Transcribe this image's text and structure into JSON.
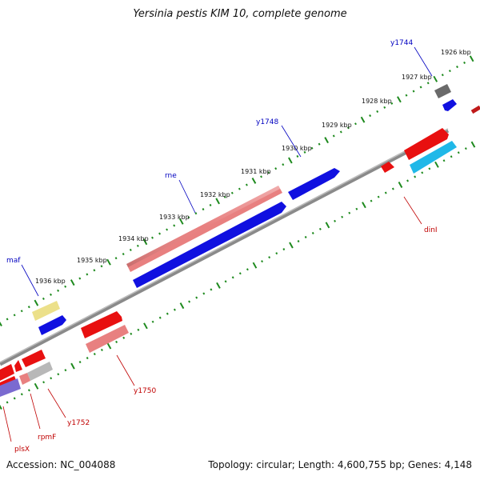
{
  "title": "Yersinia pestis KIM 10, complete genome",
  "footer": {
    "accession": "Accession: NC_004088",
    "summary": "Topology: circular; Length: 4,600,755 bp; Genes: 4,148"
  },
  "colors": {
    "backbone": "#7a7a7a",
    "ticks": "#1e8a1e",
    "label_forward": "#0000c0",
    "label_reverse": "#c00000"
  },
  "scale_labels": [
    "1926 kbp",
    "1927 kbp",
    "1928 kbp",
    "1929 kbp",
    "1930 kbp",
    "1931 kbp",
    "1932 kbp",
    "1933 kbp",
    "1934 kbp",
    "1935 kbp",
    "1936 kbp"
  ],
  "genes": {
    "forward": [
      {
        "label": "y1744",
        "color": "#6a6a6a"
      },
      {
        "label": "",
        "color": "#1010e0"
      },
      {
        "label": "y1748",
        "color": "#1010e0"
      },
      {
        "label": "rne",
        "color": "#e88080"
      },
      {
        "label": "",
        "color": "#1010e0"
      },
      {
        "label": "maf",
        "color": "#ece08a"
      },
      {
        "label": "",
        "color": "#1010e0"
      }
    ],
    "reverse": [
      {
        "label": "dinI",
        "color": "#e81010"
      },
      {
        "label": "",
        "color": "#20b8e8"
      },
      {
        "label": "",
        "color": "#e81010"
      },
      {
        "label": "y1750",
        "color": "#e81010"
      },
      {
        "label": "",
        "color": "#e88080"
      },
      {
        "label": "",
        "color": "#e81010"
      },
      {
        "label": "",
        "color": "#e81010"
      },
      {
        "label": "y1752",
        "color": "#b8b8b8"
      },
      {
        "label": "rpmF",
        "color": "#e88080"
      },
      {
        "label": "plsX",
        "color": "#e81010"
      },
      {
        "label": "",
        "color": "#7a6ad0"
      }
    ]
  }
}
